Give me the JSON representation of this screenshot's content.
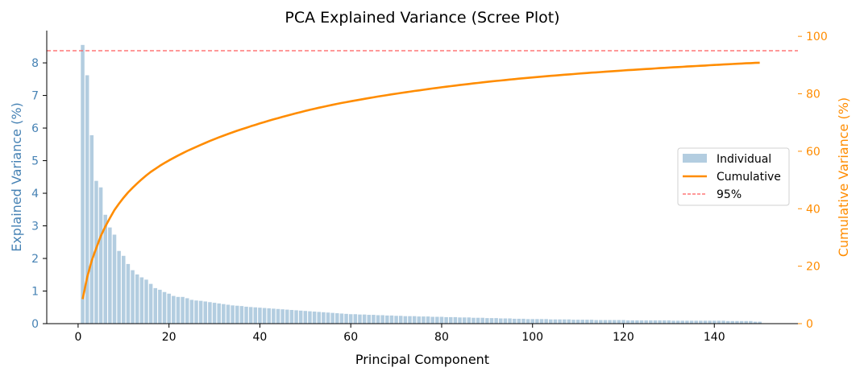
{
  "chart_data": {
    "type": "bar+line",
    "title": "PCA Explained Variance (Scree Plot)",
    "xlabel": "Principal Component",
    "ylabel": "Explained Variance (%)",
    "y2label": "Cumulative Variance (%)",
    "xlim": [
      -6.9,
      158.4
    ],
    "ylim": [
      0,
      8.99
    ],
    "y2lim": [
      0,
      102
    ],
    "xticks": [
      0,
      20,
      40,
      60,
      80,
      100,
      120,
      140
    ],
    "yticks": [
      0,
      1,
      2,
      3,
      4,
      5,
      6,
      7,
      8
    ],
    "y2ticks": [
      0,
      20,
      40,
      60,
      80,
      100
    ],
    "grid": false,
    "legend_position": "center-right",
    "threshold": 95,
    "series": [
      {
        "name": "Individual",
        "kind": "bar",
        "color": "#b3cde0"
      },
      {
        "name": "Cumulative",
        "kind": "line",
        "color": "#ff8c00"
      },
      {
        "name": "95%",
        "kind": "hline",
        "color": "#ff5c5c"
      }
    ],
    "components_start": 1,
    "values": [
      8.55,
      7.62,
      5.78,
      4.38,
      4.18,
      3.34,
      2.95,
      2.73,
      2.23,
      2.08,
      1.83,
      1.64,
      1.51,
      1.42,
      1.35,
      1.22,
      1.09,
      1.04,
      0.97,
      0.92,
      0.85,
      0.82,
      0.82,
      0.78,
      0.73,
      0.71,
      0.7,
      0.68,
      0.66,
      0.64,
      0.62,
      0.6,
      0.58,
      0.56,
      0.55,
      0.54,
      0.52,
      0.51,
      0.5,
      0.49,
      0.48,
      0.47,
      0.46,
      0.45,
      0.44,
      0.43,
      0.42,
      0.41,
      0.4,
      0.39,
      0.38,
      0.37,
      0.36,
      0.35,
      0.34,
      0.33,
      0.32,
      0.31,
      0.3,
      0.29,
      0.29,
      0.28,
      0.28,
      0.27,
      0.27,
      0.26,
      0.26,
      0.25,
      0.25,
      0.24,
      0.24,
      0.23,
      0.23,
      0.23,
      0.22,
      0.22,
      0.22,
      0.21,
      0.21,
      0.21,
      0.2,
      0.2,
      0.2,
      0.19,
      0.19,
      0.19,
      0.18,
      0.18,
      0.18,
      0.17,
      0.17,
      0.17,
      0.16,
      0.16,
      0.16,
      0.15,
      0.15,
      0.15,
      0.14,
      0.14,
      0.14,
      0.14,
      0.14,
      0.13,
      0.13,
      0.13,
      0.13,
      0.13,
      0.12,
      0.12,
      0.12,
      0.12,
      0.12,
      0.11,
      0.11,
      0.11,
      0.11,
      0.11,
      0.11,
      0.11,
      0.1,
      0.1,
      0.1,
      0.1,
      0.1,
      0.1,
      0.1,
      0.1,
      0.1,
      0.1,
      0.09,
      0.09,
      0.09,
      0.09,
      0.09,
      0.09,
      0.09,
      0.09,
      0.09,
      0.09,
      0.09,
      0.09,
      0.08,
      0.08,
      0.08,
      0.08,
      0.08,
      0.08,
      0.06,
      0.06
    ]
  },
  "colors": {
    "left_axis": "#4682b4",
    "right_axis": "#ff8c00",
    "axis": "#000000"
  }
}
